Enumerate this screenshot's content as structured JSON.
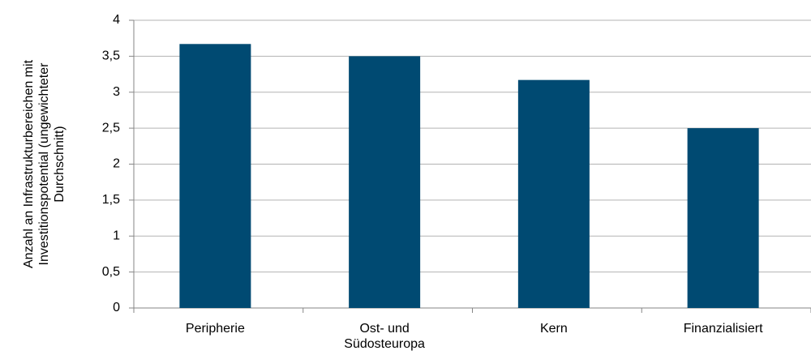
{
  "chart_data": {
    "type": "bar",
    "ylabel": [
      "Anzahl an Infrastrukturbereichen mit",
      "Investitionspotential (ungewichteter",
      "Durchschnitt)"
    ],
    "categories": [
      "Peripherie",
      "Ost- und Südosteuropa",
      "Kern",
      "Finanzialisiert"
    ],
    "values": [
      3.67,
      3.5,
      3.17,
      2.5
    ],
    "color": "#004a72",
    "ylim": [
      0,
      4
    ],
    "yticks": [
      0,
      {
        "value": 0.5,
        "label": "0,5"
      },
      1,
      {
        "value": 1.5,
        "label": "1,5"
      },
      2,
      {
        "value": 2.5,
        "label": "2,5"
      },
      3,
      {
        "value": 3.5,
        "label": "3,5"
      },
      4
    ],
    "grid": true
  }
}
